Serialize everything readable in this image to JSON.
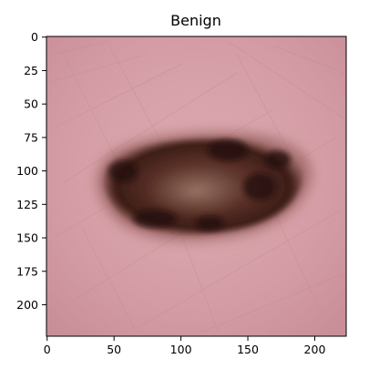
{
  "figure": {
    "title": "Benign",
    "x_ticks": [
      "0",
      "50",
      "100",
      "150",
      "200"
    ],
    "y_ticks": [
      "0",
      "25",
      "50",
      "75",
      "100",
      "125",
      "150",
      "175",
      "200"
    ],
    "x_tick_values": [
      0,
      50,
      100,
      150,
      200
    ],
    "y_tick_values": [
      0,
      25,
      50,
      75,
      100,
      125,
      150,
      175,
      200
    ],
    "x_range": [
      0,
      224
    ],
    "y_range": [
      0,
      224
    ],
    "image_subject": "skin-lesion-photo",
    "colors": {
      "skin": "#d6a0a8",
      "lesion_dark": "#2a1510",
      "lesion_mid": "#6b3f35",
      "axis": "#000000"
    }
  }
}
